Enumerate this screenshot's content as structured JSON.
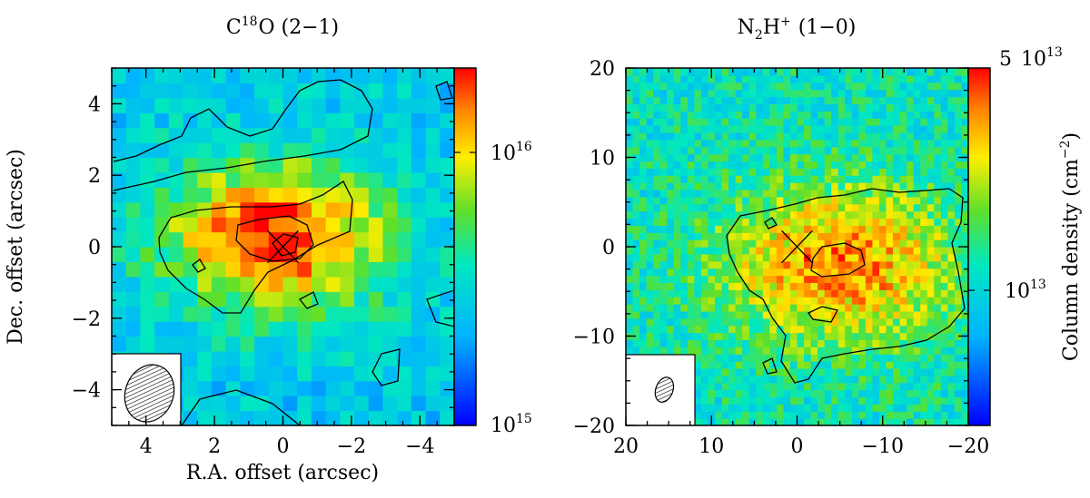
{
  "chart_data": [
    {
      "type": "heatmap",
      "title": "C18O (2-1)",
      "title_main": "C",
      "title_sup": "18",
      "title_rest": "O (2−1)",
      "xlabel": "R.A. offset (arcsec)",
      "ylabel": "Dec. offset (arcsec)",
      "xlim": [
        5,
        -5
      ],
      "ylim": [
        -5,
        5
      ],
      "xticks": [
        4,
        2,
        0,
        -2,
        -4
      ],
      "xtick_labels": [
        "4",
        "2",
        "0",
        "−2",
        "−4"
      ],
      "yticks": [
        4,
        2,
        0,
        -2,
        -4
      ],
      "ytick_labels": [
        "4",
        "2",
        "0",
        "−2",
        "−4"
      ],
      "colorbar": {
        "scale": "log",
        "range": [
          1000000000000000.0,
          3e+16
        ],
        "ticks": [
          {
            "value": 1e+16,
            "base": "10",
            "exp": "16"
          },
          {
            "value": 1000000000000000.0,
            "base": "10",
            "exp": "15"
          }
        ]
      },
      "peak_value": 2.5e+16,
      "background_value": 3000000000000000.0,
      "peak_position": [
        0.2,
        0.3
      ],
      "source_marker": [
        0,
        0
      ],
      "beam": {
        "center": [
          3.9,
          -4.1
        ],
        "major": 0.85,
        "minor": 0.7,
        "pa_deg": 20
      }
    },
    {
      "type": "heatmap",
      "title": "N2H+ (1-0)",
      "title_n": "N",
      "title_sub": "2",
      "title_h": "H",
      "title_sup": "+",
      "title_rest": "(1−0)",
      "xlim": [
        20,
        -20
      ],
      "ylim": [
        -20,
        20
      ],
      "xticks": [
        20,
        10,
        0,
        -10,
        -20
      ],
      "xtick_labels": [
        "20",
        "10",
        "0",
        "−10",
        "−20"
      ],
      "yticks": [
        20,
        10,
        0,
        -10,
        -20
      ],
      "ytick_labels": [
        "20",
        "10",
        "0",
        "−10",
        "−20"
      ],
      "colorbar": {
        "label": "Column density (cm−2)",
        "label_main": "Column density (cm",
        "label_sup": "−2",
        "label_end": ")",
        "scale": "log",
        "range": [
          3000000000000.0,
          50000000000000.0
        ],
        "ticks": [
          {
            "value": 50000000000000.0,
            "mant": "5",
            "base": "10",
            "exp": "13"
          },
          {
            "value": 10000000000000.0,
            "base": "10",
            "exp": "13"
          }
        ]
      },
      "peak_value": 32000000000000.0,
      "background_value": 10000000000000.0,
      "peak_position": [
        -5,
        -2
      ],
      "source_marker": [
        0,
        0
      ],
      "beam": {
        "center": [
          15.5,
          -16
        ],
        "major": 1.5,
        "minor": 1.0,
        "pa_deg": 20
      }
    }
  ]
}
